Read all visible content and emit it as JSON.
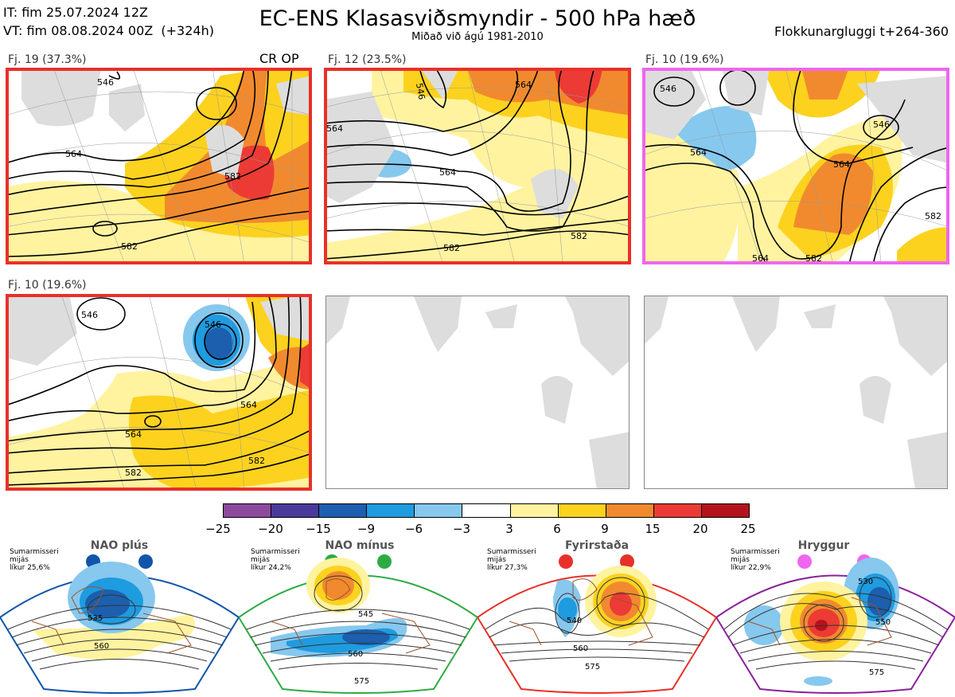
{
  "header": {
    "issue_time": "IT: fim 25.07.2024 12Z",
    "valid_time": "VT: fim 08.08.2024 00Z  (+324h)",
    "title": "EC-ENS Klasasviðsmyndir - 500 hPa hæð",
    "subtitle": "Miðað við ágú 1981-2010",
    "window": "Flokkunargluggi t+264-360"
  },
  "panels": [
    {
      "label": "Fj. 19 (37.3%)",
      "tag": "CR OP",
      "border_color": "#e8302a",
      "contours": [
        "546",
        "564",
        "582",
        "582"
      ]
    },
    {
      "label": "Fj. 12 (23.5%)",
      "tag": "",
      "border_color": "#e8302a",
      "contours": [
        "546",
        "564",
        "564",
        "564",
        "582",
        "582"
      ]
    },
    {
      "label": "Fj. 10 (19.6%)",
      "tag": "",
      "border_color": "#ee66ee",
      "contours": [
        "546",
        "546",
        "564",
        "564",
        "564",
        "582",
        "582"
      ]
    },
    {
      "label": "Fj. 10 (19.6%)",
      "tag": "",
      "border_color": "#e8302a",
      "contours": [
        "546",
        "546",
        "564",
        "564",
        "582",
        "582"
      ]
    }
  ],
  "colorbar": {
    "colors": [
      "#8c4a9e",
      "#4a3b9b",
      "#1b5fae",
      "#1f9be0",
      "#86c8ee",
      "#ffffff",
      "#fff3a0",
      "#fcd21f",
      "#f18a2e",
      "#ec3b35",
      "#b5131c"
    ],
    "ticks": [
      "−25",
      "−20",
      "−15",
      "−9",
      "−6",
      "−3",
      "3",
      "6",
      "9",
      "15",
      "20",
      "25"
    ]
  },
  "regimes": [
    {
      "name": "NAO plús",
      "info": "Sumarmisseri\nmijás\nlíkur 25,6%",
      "color": "#1155aa",
      "contours": [
        "535",
        "560"
      ]
    },
    {
      "name": "NAO mínus",
      "info": "Sumarmisseri\nmijás\nlíkur 24,2%",
      "color": "#2eaa44",
      "contours": [
        "545",
        "560",
        "575"
      ]
    },
    {
      "name": "Fyrirstaða",
      "info": "Sumarmisseri\nmijás\nlíkur 27,3%",
      "color": "#e8302a",
      "contours": [
        "540",
        "560",
        "575"
      ]
    },
    {
      "name": "Hryggur",
      "info": "Sumarmisseri\nmijás\nlíkur 22,9%",
      "color": "#882299",
      "contours": [
        "530",
        "550",
        "575"
      ]
    }
  ]
}
